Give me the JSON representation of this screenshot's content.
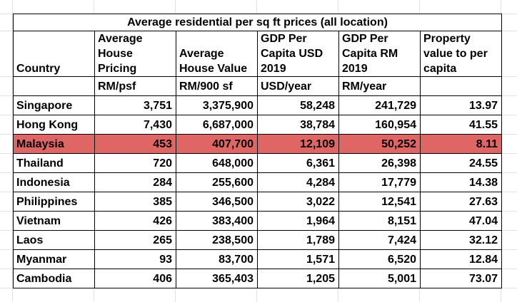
{
  "title": "Average residential per sq ft prices (all location)",
  "headers": [
    "Country",
    "Average House Pricing",
    "Average House Value",
    "GDP Per Capita USD 2019",
    "GDP Per Capita RM 2019",
    "Property value to per capita"
  ],
  "units": [
    "",
    "RM/psf",
    "RM/900 sf",
    "USD/year",
    "RM/year",
    ""
  ],
  "highlight_color": "#e06666",
  "highlighted_row": "Malaysia",
  "rows": [
    [
      "Singapore",
      "3,751",
      "3,375,900",
      "58,248",
      "241,729",
      "13.97"
    ],
    [
      "Hong Kong",
      "7,430",
      "6,687,000",
      "38,784",
      "160,954",
      "41.55"
    ],
    [
      "Malaysia",
      "453",
      "407,700",
      "12,109",
      "50,252",
      "8.11"
    ],
    [
      "Thailand",
      "720",
      "648,000",
      "6,361",
      "26,398",
      "24.55"
    ],
    [
      "Indonesia",
      "284",
      "255,600",
      "4,284",
      "17,779",
      "14.38"
    ],
    [
      "Philippines",
      "385",
      "346,500",
      "3,022",
      "12,541",
      "27.63"
    ],
    [
      "Vietnam",
      "426",
      "383,400",
      "1,964",
      "8,151",
      "47.04"
    ],
    [
      "Laos",
      "265",
      "238,500",
      "1,789",
      "7,424",
      "32.12"
    ],
    [
      "Myanmar",
      "93",
      "83,700",
      "1,571",
      "6,520",
      "12.84"
    ],
    [
      "Cambodia",
      "406",
      "365,403",
      "1,205",
      "5,001",
      "73.07"
    ]
  ]
}
